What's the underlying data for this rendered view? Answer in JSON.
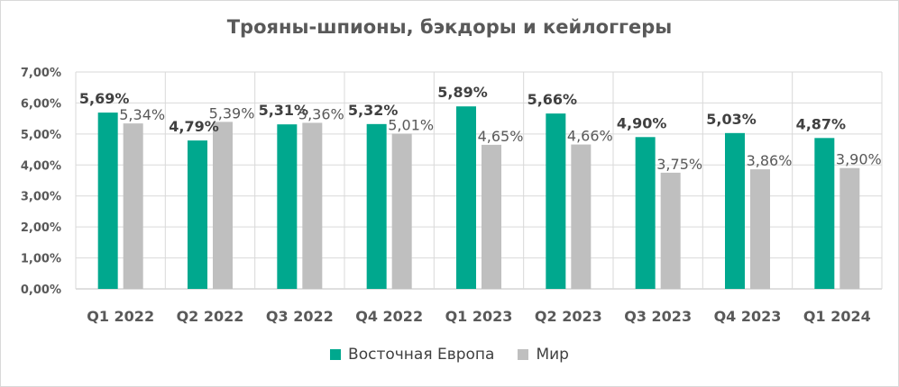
{
  "chart_data": {
    "type": "bar",
    "title": "Трояны-шпионы, бэкдоры и кейлоггеры",
    "categories": [
      "Q1 2022",
      "Q2 2022",
      "Q3 2022",
      "Q4 2022",
      "Q1 2023",
      "Q2 2023",
      "Q3 2023",
      "Q4 2023",
      "Q1 2024"
    ],
    "series": [
      {
        "name": "Восточная Европа",
        "color": "#00a88e",
        "values": [
          5.69,
          4.79,
          5.31,
          5.32,
          5.89,
          5.66,
          4.9,
          5.03,
          4.87
        ],
        "labels": [
          "5,69%",
          "4,79%",
          "5,31%",
          "5,32%",
          "5,89%",
          "5,66%",
          "4,90%",
          "5,03%",
          "4,87%"
        ]
      },
      {
        "name": "Мир",
        "color": "#bfbfbf",
        "values": [
          5.34,
          5.39,
          5.36,
          5.01,
          4.65,
          4.66,
          3.75,
          3.86,
          3.9
        ],
        "labels": [
          "5,34%",
          "5,39%",
          "5,36%",
          "5,01%",
          "4,65%",
          "4,66%",
          "3,75%",
          "3,86%",
          "3,90%"
        ]
      }
    ],
    "yticks": [
      "0,00%",
      "1,00%",
      "2,00%",
      "3,00%",
      "4,00%",
      "5,00%",
      "6,00%",
      "7,00%"
    ],
    "ylim": [
      0,
      7
    ],
    "grid": true,
    "legend_position": "bottom"
  }
}
